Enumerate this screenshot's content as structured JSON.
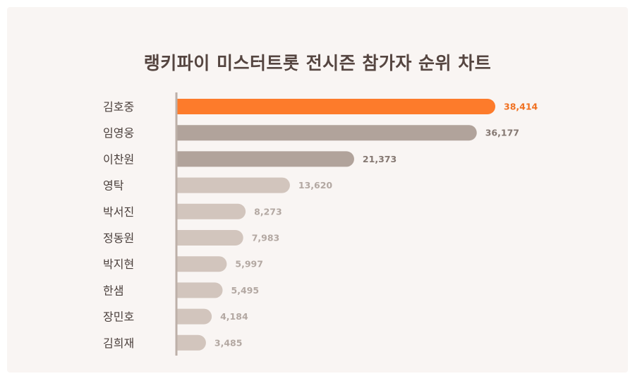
{
  "chart_data": {
    "type": "bar",
    "orientation": "horizontal",
    "title": "랭키파이 미스터트롯 전시즌 참가자 순위 차트",
    "categories": [
      "김호중",
      "임영웅",
      "이찬원",
      "영탁",
      "박서진",
      "정동원",
      "박지현",
      "한샘",
      "장민호",
      "김희재"
    ],
    "values": [
      38414,
      36177,
      21373,
      13620,
      8273,
      7983,
      5997,
      5495,
      4184,
      3485
    ],
    "value_labels": [
      "38,414",
      "36,177",
      "21,373",
      "13,620",
      "8,273",
      "7,983",
      "5,997",
      "5,495",
      "4,184",
      "3,485"
    ],
    "xlabel": "",
    "ylabel": "",
    "xlim": [
      0,
      38414
    ],
    "grid": false,
    "colors": {
      "highlight": "#fd7b2b",
      "highlight_label": "#f07020",
      "mid": "#b1a39b",
      "mid_label": "#857872",
      "light": "#d2c5bd",
      "light_label": "#b3a8a2",
      "axis": "#bdb0a8"
    }
  }
}
